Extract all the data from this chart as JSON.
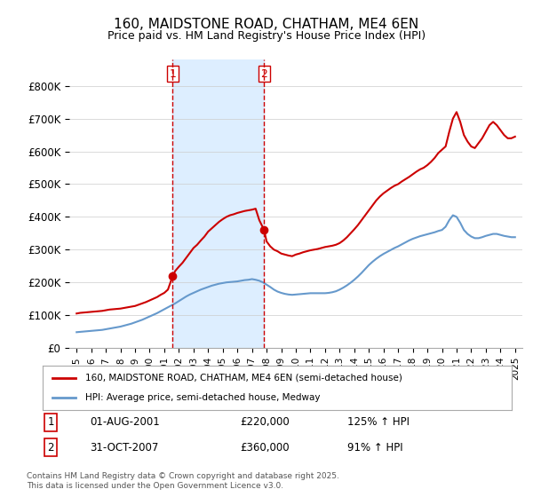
{
  "title": "160, MAIDSTONE ROAD, CHATHAM, ME4 6EN",
  "subtitle": "Price paid vs. HM Land Registry's House Price Index (HPI)",
  "red_label": "160, MAIDSTONE ROAD, CHATHAM, ME4 6EN (semi-detached house)",
  "blue_label": "HPI: Average price, semi-detached house, Medway",
  "footnote": "Contains HM Land Registry data © Crown copyright and database right 2025.\nThis data is licensed under the Open Government Licence v3.0.",
  "annotation1": {
    "num": "1",
    "date": "01-AUG-2001",
    "price": "£220,000",
    "hpi": "125% ↑ HPI"
  },
  "annotation2": {
    "num": "2",
    "date": "31-OCT-2007",
    "price": "£360,000",
    "hpi": "91% ↑ HPI"
  },
  "highlight_start": 2001.58,
  "highlight_end": 2007.83,
  "vline1_x": 2001.58,
  "vline2_x": 2007.83,
  "point1_x": 2001.58,
  "point1_y": 220000,
  "point2_x": 2007.83,
  "point2_y": 360000,
  "red_color": "#cc0000",
  "blue_color": "#6699cc",
  "highlight_color": "#ddeeff",
  "background_color": "#ffffff",
  "ylim": [
    0,
    880000
  ],
  "xlim_start": 1994.5,
  "xlim_end": 2025.5,
  "yticks": [
    0,
    100000,
    200000,
    300000,
    400000,
    500000,
    600000,
    700000,
    800000
  ],
  "ytick_labels": [
    "£0",
    "£100K",
    "£200K",
    "£300K",
    "£400K",
    "£500K",
    "£600K",
    "£700K",
    "£800K"
  ],
  "xticks": [
    1995,
    1996,
    1997,
    1998,
    1999,
    2000,
    2001,
    2002,
    2003,
    2004,
    2005,
    2006,
    2007,
    2008,
    2009,
    2010,
    2011,
    2012,
    2013,
    2014,
    2015,
    2016,
    2017,
    2018,
    2019,
    2020,
    2021,
    2022,
    2023,
    2024,
    2025
  ],
  "red_x": [
    1995.0,
    1995.25,
    1995.5,
    1995.75,
    1996.0,
    1996.25,
    1996.5,
    1996.75,
    1997.0,
    1997.25,
    1997.5,
    1997.75,
    1998.0,
    1998.25,
    1998.5,
    1998.75,
    1999.0,
    1999.25,
    1999.5,
    1999.75,
    2000.0,
    2000.25,
    2000.5,
    2000.75,
    2001.0,
    2001.25,
    2001.58,
    2001.75,
    2002.0,
    2002.25,
    2002.5,
    2002.75,
    2003.0,
    2003.25,
    2003.5,
    2003.75,
    2004.0,
    2004.25,
    2004.5,
    2004.75,
    2005.0,
    2005.25,
    2005.5,
    2005.75,
    2006.0,
    2006.25,
    2006.5,
    2006.75,
    2007.0,
    2007.25,
    2007.5,
    2007.83,
    2008.0,
    2008.25,
    2008.5,
    2008.75,
    2009.0,
    2009.25,
    2009.5,
    2009.75,
    2010.0,
    2010.25,
    2010.5,
    2010.75,
    2011.0,
    2011.25,
    2011.5,
    2011.75,
    2012.0,
    2012.25,
    2012.5,
    2012.75,
    2013.0,
    2013.25,
    2013.5,
    2013.75,
    2014.0,
    2014.25,
    2014.5,
    2014.75,
    2015.0,
    2015.25,
    2015.5,
    2015.75,
    2016.0,
    2016.25,
    2016.5,
    2016.75,
    2017.0,
    2017.25,
    2017.5,
    2017.75,
    2018.0,
    2018.25,
    2018.5,
    2018.75,
    2019.0,
    2019.25,
    2019.5,
    2019.75,
    2020.0,
    2020.25,
    2020.5,
    2020.75,
    2021.0,
    2021.25,
    2021.5,
    2021.75,
    2022.0,
    2022.25,
    2022.5,
    2022.75,
    2023.0,
    2023.25,
    2023.5,
    2023.75,
    2024.0,
    2024.25,
    2024.5,
    2024.75,
    2025.0
  ],
  "red_y": [
    105000,
    107000,
    108000,
    109000,
    110000,
    111000,
    112000,
    113000,
    115000,
    117000,
    118000,
    119000,
    120000,
    122000,
    124000,
    126000,
    128000,
    132000,
    136000,
    140000,
    145000,
    150000,
    155000,
    162000,
    168000,
    178000,
    220000,
    235000,
    248000,
    260000,
    275000,
    290000,
    305000,
    315000,
    328000,
    340000,
    355000,
    365000,
    375000,
    385000,
    393000,
    400000,
    405000,
    408000,
    412000,
    415000,
    418000,
    420000,
    422000,
    425000,
    390000,
    360000,
    325000,
    310000,
    300000,
    295000,
    288000,
    285000,
    282000,
    280000,
    285000,
    288000,
    292000,
    295000,
    298000,
    300000,
    302000,
    305000,
    308000,
    310000,
    312000,
    315000,
    320000,
    328000,
    338000,
    350000,
    362000,
    375000,
    390000,
    405000,
    420000,
    435000,
    450000,
    462000,
    472000,
    480000,
    488000,
    495000,
    500000,
    508000,
    515000,
    522000,
    530000,
    538000,
    545000,
    550000,
    558000,
    568000,
    580000,
    595000,
    605000,
    615000,
    660000,
    700000,
    720000,
    690000,
    650000,
    630000,
    615000,
    610000,
    625000,
    640000,
    660000,
    680000,
    690000,
    680000,
    665000,
    650000,
    640000,
    640000,
    645000
  ],
  "blue_x": [
    1995.0,
    1995.25,
    1995.5,
    1995.75,
    1996.0,
    1996.25,
    1996.5,
    1996.75,
    1997.0,
    1997.25,
    1997.5,
    1997.75,
    1998.0,
    1998.25,
    1998.5,
    1998.75,
    1999.0,
    1999.25,
    1999.5,
    1999.75,
    2000.0,
    2000.25,
    2000.5,
    2000.75,
    2001.0,
    2001.25,
    2001.5,
    2001.75,
    2002.0,
    2002.25,
    2002.5,
    2002.75,
    2003.0,
    2003.25,
    2003.5,
    2003.75,
    2004.0,
    2004.25,
    2004.5,
    2004.75,
    2005.0,
    2005.25,
    2005.5,
    2005.75,
    2006.0,
    2006.25,
    2006.5,
    2006.75,
    2007.0,
    2007.25,
    2007.5,
    2007.75,
    2008.0,
    2008.25,
    2008.5,
    2008.75,
    2009.0,
    2009.25,
    2009.5,
    2009.75,
    2010.0,
    2010.25,
    2010.5,
    2010.75,
    2011.0,
    2011.25,
    2011.5,
    2011.75,
    2012.0,
    2012.25,
    2012.5,
    2012.75,
    2013.0,
    2013.25,
    2013.5,
    2013.75,
    2014.0,
    2014.25,
    2014.5,
    2014.75,
    2015.0,
    2015.25,
    2015.5,
    2015.75,
    2016.0,
    2016.25,
    2016.5,
    2016.75,
    2017.0,
    2017.25,
    2017.5,
    2017.75,
    2018.0,
    2018.25,
    2018.5,
    2018.75,
    2019.0,
    2019.25,
    2019.5,
    2019.75,
    2020.0,
    2020.25,
    2020.5,
    2020.75,
    2021.0,
    2021.25,
    2021.5,
    2021.75,
    2022.0,
    2022.25,
    2022.5,
    2022.75,
    2023.0,
    2023.25,
    2023.5,
    2023.75,
    2024.0,
    2024.25,
    2024.5,
    2024.75,
    2025.0
  ],
  "blue_y": [
    48000,
    49000,
    50000,
    51000,
    52000,
    53000,
    54000,
    55000,
    57000,
    59000,
    61000,
    63000,
    65000,
    68000,
    71000,
    74000,
    78000,
    82000,
    86000,
    91000,
    96000,
    101000,
    106000,
    112000,
    118000,
    124000,
    130000,
    136000,
    143000,
    150000,
    157000,
    163000,
    168000,
    173000,
    178000,
    182000,
    186000,
    190000,
    193000,
    196000,
    198000,
    200000,
    201000,
    202000,
    203000,
    205000,
    207000,
    208000,
    210000,
    208000,
    205000,
    200000,
    193000,
    186000,
    178000,
    172000,
    168000,
    165000,
    163000,
    162000,
    163000,
    164000,
    165000,
    166000,
    167000,
    167000,
    167000,
    167000,
    167000,
    168000,
    170000,
    173000,
    178000,
    184000,
    191000,
    199000,
    208000,
    218000,
    229000,
    241000,
    253000,
    263000,
    272000,
    280000,
    287000,
    293000,
    299000,
    305000,
    310000,
    316000,
    322000,
    328000,
    333000,
    337000,
    341000,
    344000,
    347000,
    350000,
    353000,
    357000,
    360000,
    370000,
    390000,
    405000,
    400000,
    382000,
    360000,
    348000,
    340000,
    335000,
    335000,
    338000,
    342000,
    345000,
    348000,
    348000,
    345000,
    342000,
    340000,
    338000,
    338000
  ]
}
